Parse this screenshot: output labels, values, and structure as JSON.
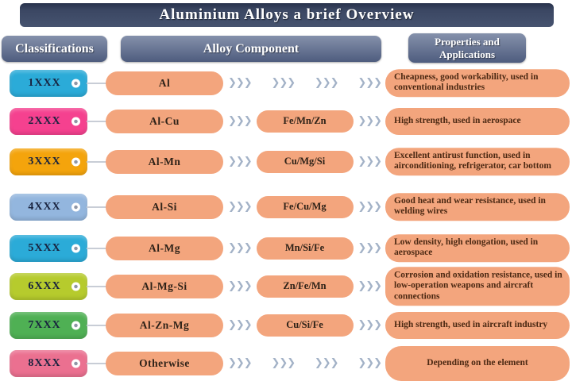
{
  "title": "Aluminium Alloys a brief Overview",
  "columns": {
    "classifications": "Classifications",
    "alloy_component": "Alloy Component",
    "properties": "Properties and Applications"
  },
  "chevron_icon": "❯❯❯",
  "colors": {
    "title_bar": "#3b4763",
    "column_header": "#4e5c7e",
    "pill_peach": "#F3A57D",
    "chevron": "#a3b2c7"
  },
  "rows": [
    {
      "code": "1XXX",
      "tag_color": "#2BABD8",
      "component": "Al",
      "secondary": null,
      "property": "Cheapness, good workability, used in conventional industries"
    },
    {
      "code": "2XXX",
      "tag_color": "#F5418F",
      "component": "Al-Cu",
      "secondary": "Fe/Mn/Zn",
      "property": "High strength, used in aerospace"
    },
    {
      "code": "3XXX",
      "tag_color": "#F4A40C",
      "component": "Al-Mn",
      "secondary": "Cu/Mg/Si",
      "property": "Excellent antirust function, used in airconditioning, refrigerator, car bottom"
    },
    {
      "code": "4XXX",
      "tag_color": "#93B6DE",
      "component": "Al-Si",
      "secondary": "Fe/Cu/Mg",
      "property": "Good heat and wear resistance, used in welding wires"
    },
    {
      "code": "5XXX",
      "tag_color": "#2BABD8",
      "component": "Al-Mg",
      "secondary": "Mn/Si/Fe",
      "property": "Low density, high elongation, used in aerospace"
    },
    {
      "code": "6XXX",
      "tag_color": "#B6CB2D",
      "component": "Al-Mg-Si",
      "secondary": "Zn/Fe/Mn",
      "property": "Corrosion and oxidation resistance, used in low-operation weapons and aircraft connections"
    },
    {
      "code": "7XXX",
      "tag_color": "#4FB054",
      "component": "Al-Zn-Mg",
      "secondary": "Cu/Si/Fe",
      "property": "High strength, used in aircraft industry"
    },
    {
      "code": "8XXX",
      "tag_color": "#EB7090",
      "component": "Otherwise",
      "secondary": null,
      "property": "Depending on the element"
    }
  ]
}
